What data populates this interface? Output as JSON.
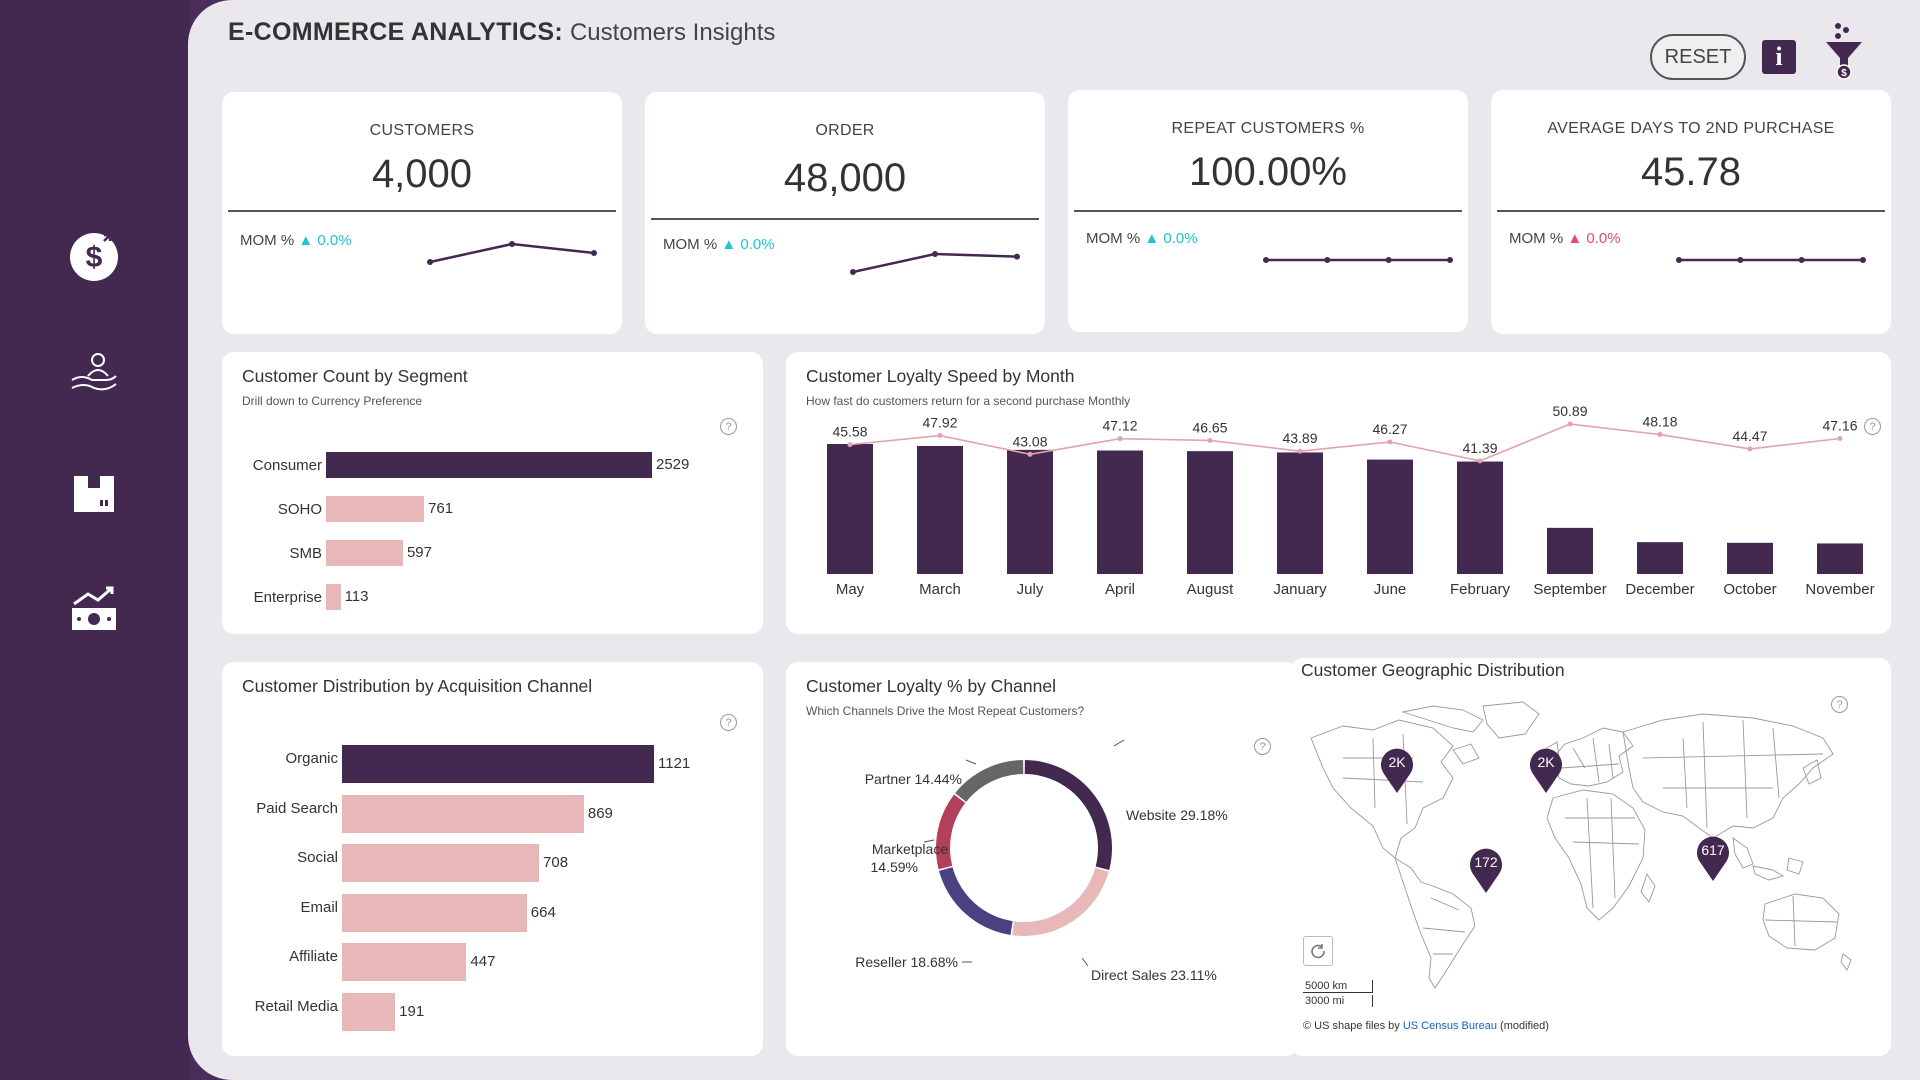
{
  "header": {
    "title_bold": "E-COMMERCE ANALYTICS:",
    "title_sub": "Customers Insights",
    "reset_label": "RESET",
    "info_label": "i"
  },
  "sidebar": {
    "items": [
      {
        "icon": "dollar-icon"
      },
      {
        "icon": "hand-person-icon"
      },
      {
        "icon": "box-icon"
      },
      {
        "icon": "money-growth-icon"
      }
    ]
  },
  "kpis": [
    {
      "label": "CUSTOMERS",
      "value": "4,000",
      "mom_label": "MOM %",
      "mom_value": "0.0%",
      "trend": "up",
      "color": "#1fc3d2",
      "spark": [
        3,
        5,
        4
      ]
    },
    {
      "label": "ORDER",
      "value": "48,000",
      "mom_label": "MOM %",
      "mom_value": "0.0%",
      "trend": "up",
      "color": "#1fc3d2",
      "spark": [
        1,
        8,
        7
      ]
    },
    {
      "label": "REPEAT CUSTOMERS %",
      "value": "100.00%",
      "mom_label": "MOM %",
      "mom_value": "0.0%",
      "trend": "up",
      "color": "#1fc3d2",
      "spark": [
        5,
        5,
        5,
        5
      ]
    },
    {
      "label": "AVERAGE DAYS TO 2ND PURCHASE",
      "value": "45.78",
      "mom_label": "MOM %",
      "mom_value": "0.0%",
      "trend": "up",
      "color": "#e44d6a",
      "spark": [
        5,
        5,
        5,
        5
      ]
    }
  ],
  "segment_panel": {
    "title": "Customer Count by Segment",
    "subtitle": "Drill down to Currency Preference",
    "help": "?"
  },
  "loyalty_speed_panel": {
    "title": "Customer Loyalty Speed by Month",
    "subtitle": "How fast do customers return for a second purchase Monthly",
    "help": "?"
  },
  "channel_panel": {
    "title": "Customer Distribution by Acquisition Channel",
    "help": "?"
  },
  "loyalty_channel_panel": {
    "title": "Customer Loyalty % by Channel",
    "subtitle": "Which Channels Drive the Most Repeat Customers?",
    "help": "?"
  },
  "geo_panel": {
    "title": "Customer Geographic Distribution",
    "help": "?",
    "scale_km": "5000 km",
    "scale_mi": "3000 mi",
    "attribution_prefix": "© US shape files by ",
    "attribution_link": "US Census Bureau",
    "attribution_suffix": " (modified)",
    "markers": [
      {
        "label": "2K",
        "region": "north-america"
      },
      {
        "label": "2K",
        "region": "europe"
      },
      {
        "label": "172",
        "region": "south-america"
      },
      {
        "label": "617",
        "region": "southeast-asia"
      }
    ]
  },
  "chart_data": [
    {
      "type": "bar",
      "orientation": "horizontal",
      "title": "Customer Count by Segment",
      "subtitle": "Drill down to Currency Preference",
      "categories": [
        "Consumer",
        "SOHO",
        "SMB",
        "Enterprise"
      ],
      "values": [
        2529,
        761,
        597,
        113
      ],
      "colors": [
        "#432850",
        "#e8b7b7",
        "#e8b7b7",
        "#e8b7b7"
      ]
    },
    {
      "type": "bar",
      "title": "Customer Loyalty Speed by Month",
      "subtitle": "How fast do customers return for a second purchase Monthly",
      "categories": [
        "May",
        "March",
        "July",
        "April",
        "August",
        "January",
        "June",
        "February",
        "September",
        "December",
        "October",
        "November"
      ],
      "series": [
        {
          "type": "bar",
          "values": [
            1000,
            985,
            955,
            950,
            945,
            935,
            880,
            865,
            355,
            245,
            240,
            235
          ],
          "color": "#432850"
        },
        {
          "type": "line",
          "values": [
            45.58,
            47.92,
            43.08,
            47.12,
            46.65,
            43.89,
            46.27,
            41.39,
            50.89,
            48.18,
            44.47,
            47.16
          ],
          "color": "#e3a2ad"
        }
      ]
    },
    {
      "type": "bar",
      "orientation": "horizontal",
      "title": "Customer Distribution by Acquisition Channel",
      "categories": [
        "Organic",
        "Paid Search",
        "Social",
        "Email",
        "Affiliate",
        "Retail Media"
      ],
      "values": [
        1121,
        869,
        708,
        664,
        447,
        191
      ],
      "colors": [
        "#432850",
        "#e8b7b7",
        "#e8b7b7",
        "#e8b7b7",
        "#e8b7b7",
        "#e8b7b7"
      ]
    },
    {
      "type": "pie",
      "donut": true,
      "title": "Customer Loyalty % by Channel",
      "subtitle": "Which Channels Drive the Most Repeat Customers?",
      "slices": [
        {
          "name": "Website",
          "value": 29.18,
          "label": "Website 29.18%",
          "color": "#432850"
        },
        {
          "name": "Direct Sales",
          "value": 23.11,
          "label": "Direct Sales 23.11%",
          "color": "#e8b7b7"
        },
        {
          "name": "Reseller",
          "value": 18.68,
          "label": "Reseller 18.68%",
          "color": "#4a4180"
        },
        {
          "name": "Marketplace",
          "value": 14.59,
          "label_line1": "Marketplace",
          "label_line2": "14.59%",
          "color": "#b3405a"
        },
        {
          "name": "Partner",
          "value": 14.44,
          "label": "Partner 14.44%",
          "color": "#666666"
        }
      ]
    }
  ]
}
